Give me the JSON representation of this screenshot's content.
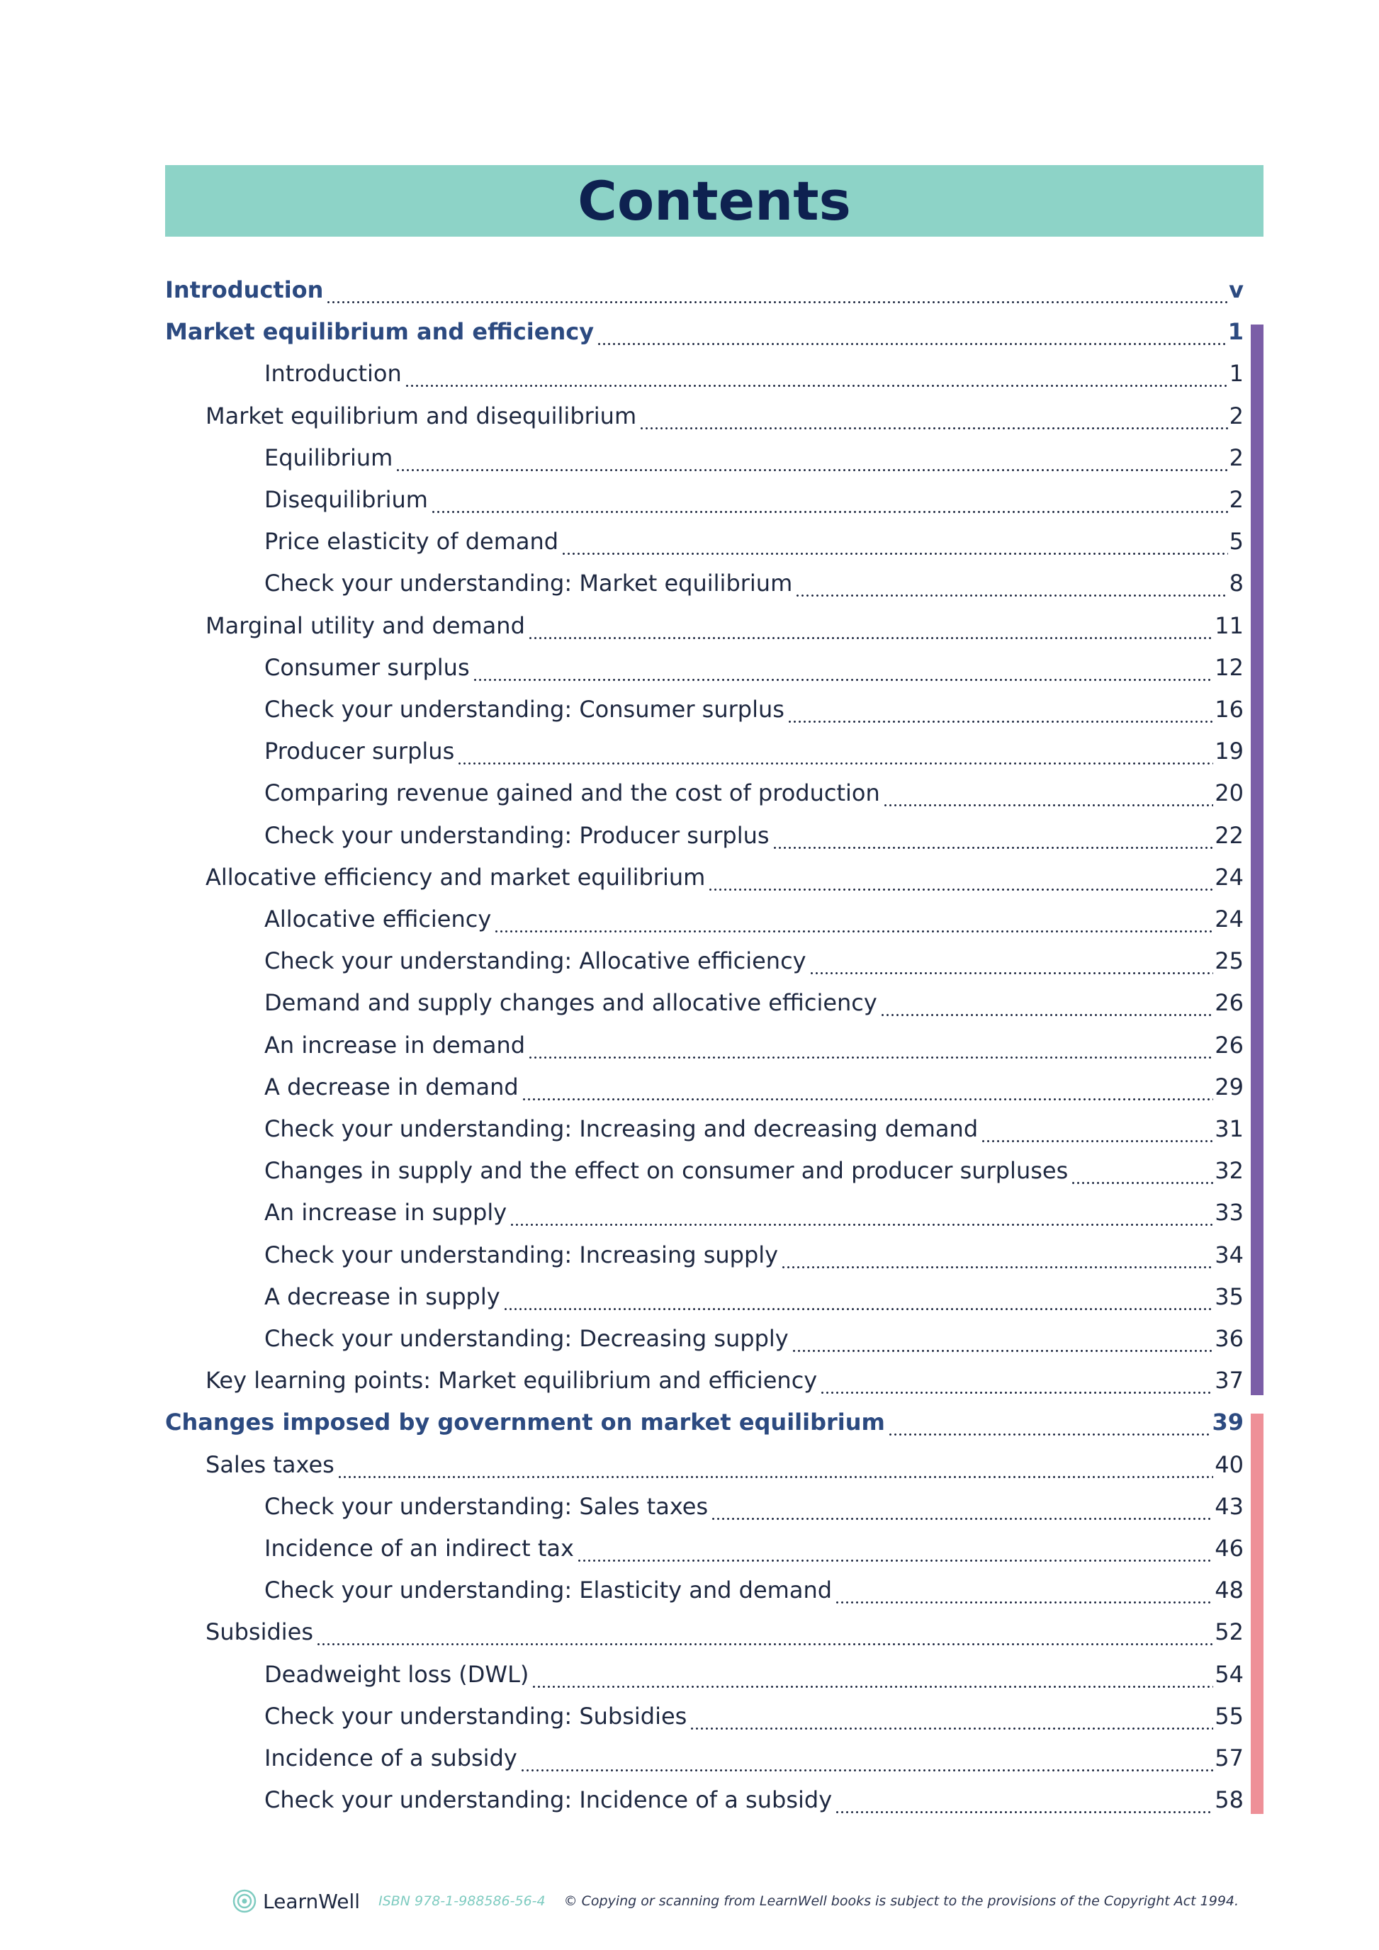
{
  "title": "Contents",
  "entries": [
    {
      "title": "Introduction",
      "page": "v",
      "level": 0
    },
    {
      "title": "Market equilibrium and efficiency",
      "page": "1",
      "level": 0
    },
    {
      "title": "Introduction",
      "page": "1",
      "level": 2
    },
    {
      "title": "Market equilibrium and disequilibrium",
      "page": "2",
      "level": 1
    },
    {
      "title": "Equilibrium",
      "page": "2",
      "level": 2
    },
    {
      "title": "Disequilibrium",
      "page": "2",
      "level": 2
    },
    {
      "title": "Price elasticity of demand",
      "page": "5",
      "level": 2
    },
    {
      "title": "Check your understanding: Market equilibrium",
      "page": "8",
      "level": 2
    },
    {
      "title": "Marginal utility and demand",
      "page": "11",
      "level": 1
    },
    {
      "title": "Consumer surplus",
      "page": "12",
      "level": 2
    },
    {
      "title": "Check your understanding: Consumer surplus",
      "page": "16",
      "level": 2
    },
    {
      "title": "Producer surplus",
      "page": "19",
      "level": 2
    },
    {
      "title": "Comparing revenue gained and the cost of production",
      "page": "20",
      "level": 2
    },
    {
      "title": "Check your understanding: Producer surplus",
      "page": "22",
      "level": 2
    },
    {
      "title": "Allocative efficiency and market equilibrium",
      "page": "24",
      "level": 1
    },
    {
      "title": "Allocative efficiency",
      "page": "24",
      "level": 2
    },
    {
      "title": "Check your understanding: Allocative efficiency",
      "page": "25",
      "level": 2
    },
    {
      "title": "Demand and supply changes and allocative efficiency",
      "page": "26",
      "level": 2
    },
    {
      "title": "An increase in demand",
      "page": "26",
      "level": 2
    },
    {
      "title": "A decrease in demand",
      "page": "29",
      "level": 2
    },
    {
      "title": "Check your understanding: Increasing and decreasing demand",
      "page": "31",
      "level": 2
    },
    {
      "title": "Changes in supply and the effect on consumer and producer surpluses",
      "page": "32",
      "level": 2
    },
    {
      "title": "An increase in supply",
      "page": "33",
      "level": 2
    },
    {
      "title": "Check your understanding: Increasing supply",
      "page": "34",
      "level": 2
    },
    {
      "title": "A decrease in supply",
      "page": "35",
      "level": 2
    },
    {
      "title": "Check your understanding: Decreasing supply",
      "page": "36",
      "level": 2
    },
    {
      "title": "Key learning points: Market equilibrium and efficiency",
      "page": "37",
      "level": 1
    },
    {
      "title": "Changes imposed by government on market equilibrium",
      "page": "39",
      "level": 0
    },
    {
      "title": "Sales taxes",
      "page": "40",
      "level": 1
    },
    {
      "title": "Check your understanding: Sales taxes",
      "page": "43",
      "level": 2
    },
    {
      "title": "Incidence of an indirect tax",
      "page": "46",
      "level": 2
    },
    {
      "title": "Check your understanding: Elasticity and demand",
      "page": "48",
      "level": 2
    },
    {
      "title": "Subsidies",
      "page": "52",
      "level": 1
    },
    {
      "title": "Deadweight loss (DWL)",
      "page": "54",
      "level": 2
    },
    {
      "title": "Check your understanding: Subsidies",
      "page": "55",
      "level": 2
    },
    {
      "title": "Incidence of a subsidy",
      "page": "57",
      "level": 2
    },
    {
      "title": "Check your understanding: Incidence of a subsidy",
      "page": "58",
      "level": 2
    }
  ],
  "footer": {
    "brand": "LearnWell",
    "isbn": "ISBN 978-1-988586-56-4",
    "copyright": "© Copying or scanning from LearnWell books is subject to the provisions of the Copyright Act 1994."
  }
}
